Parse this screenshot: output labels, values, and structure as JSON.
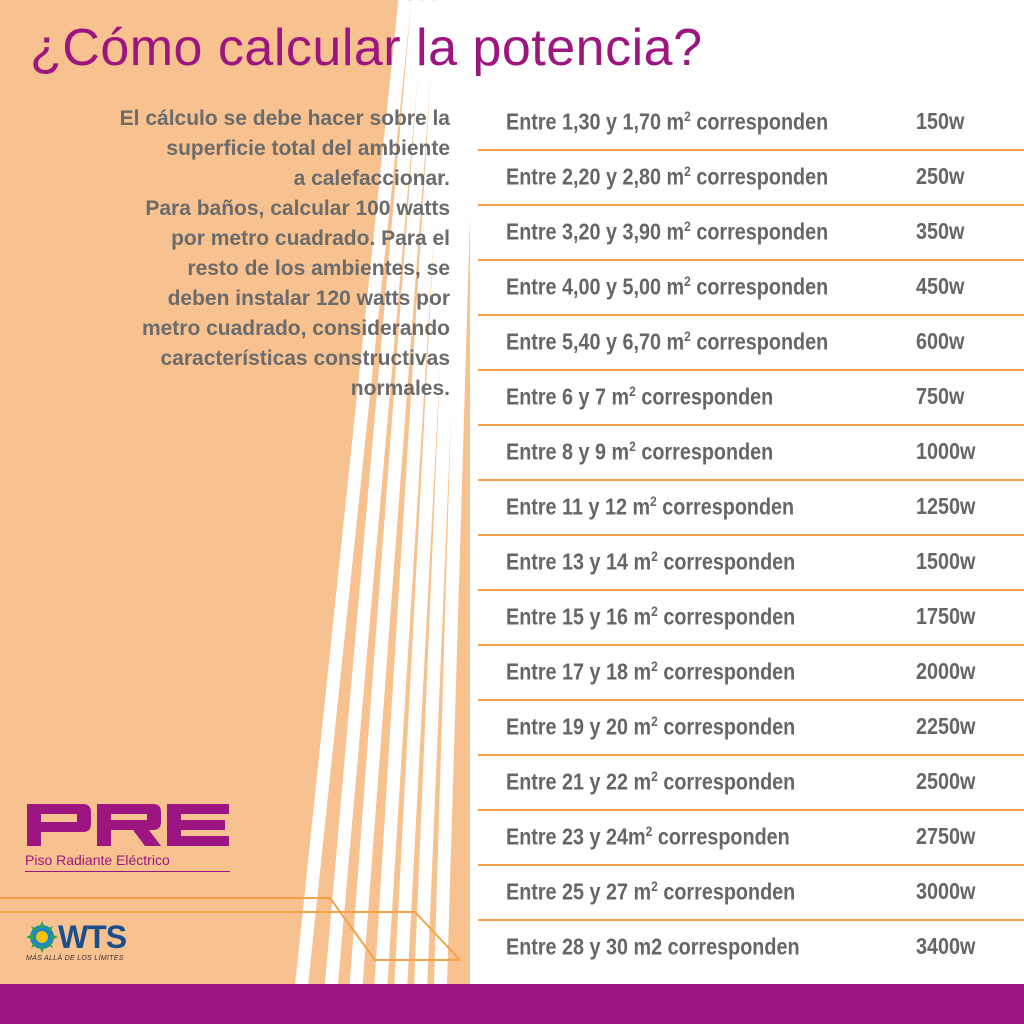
{
  "title": "¿Cómo calcular la potencia?",
  "description": [
    "El cálculo se debe hacer sobre la",
    "superficie total del ambiente",
    "a calefaccionar.",
    "Para baños, calcular 100 watts",
    "por metro cuadrado. Para el",
    "resto de los ambientes, se",
    "deben instalar 120 watts por",
    "metro cuadrado, considerando",
    "características constructivas",
    "normales."
  ],
  "table": [
    {
      "prefix": "Entre  1,30 y 1,70 m",
      "sup": "2",
      "suffix": " corresponden",
      "watts": "150w"
    },
    {
      "prefix": "Entre 2,20 y 2,80 m",
      "sup": "2",
      "suffix": " corresponden",
      "watts": "250w"
    },
    {
      "prefix": "Entre 3,20 y 3,90 m",
      "sup": "2",
      "suffix": " corresponden",
      "watts": "350w"
    },
    {
      "prefix": "Entre 4,00 y 5,00 m",
      "sup": "2",
      "suffix": " corresponden",
      "watts": "450w"
    },
    {
      "prefix": "Entre 5,40 y 6,70 m",
      "sup": "2",
      "suffix": " corresponden",
      "watts": "600w"
    },
    {
      "prefix": "Entre 6 y 7 m",
      "sup": "2",
      "suffix": " corresponden",
      "watts": "750w"
    },
    {
      "prefix": "Entre 8 y 9 m",
      "sup": "2",
      "suffix": " corresponden",
      "watts": "1000w"
    },
    {
      "prefix": "Entre 11 y 12 m",
      "sup": "2",
      "suffix": " corresponden",
      "watts": "1250w"
    },
    {
      "prefix": "Entre 13 y 14 m",
      "sup": "2",
      "suffix": " corresponden",
      "watts": "1500w"
    },
    {
      "prefix": "Entre 15 y 16 m",
      "sup": "2",
      "suffix": " corresponden",
      "watts": "1750w"
    },
    {
      "prefix": "Entre 17 y 18 m",
      "sup": "2",
      "suffix": " corresponden",
      "watts": "2000w"
    },
    {
      "prefix": "Entre 19 y 20 m",
      "sup": "2",
      "suffix": " corresponden",
      "watts": "2250w"
    },
    {
      "prefix": "Entre 21 y 22 m",
      "sup": "2",
      "suffix": " corresponden",
      "watts": "2500w"
    },
    {
      "prefix": "Entre 23 y 24m",
      "sup": "2",
      "suffix": " corresponden",
      "watts": "2750w"
    },
    {
      "prefix": "Entre 25 y 27 m",
      "sup": "2",
      "suffix": " corresponden",
      "watts": "3000w"
    },
    {
      "prefix": "Entre 28 y 30 m2 corresponden",
      "sup": "",
      "suffix": "",
      "watts": "3400w"
    }
  ],
  "logo_pre": {
    "mark": "PRE",
    "caption": "Piso Radiante Eléctrico"
  },
  "logo_wts": {
    "mark": "WTS",
    "tagline": "MÁS ALLÁ DE LOS LÍMITES"
  },
  "colors": {
    "magenta": "#9d1580",
    "peach": "#f7c28f",
    "orange_line": "#f4a24a",
    "text_gray": "#666666"
  }
}
